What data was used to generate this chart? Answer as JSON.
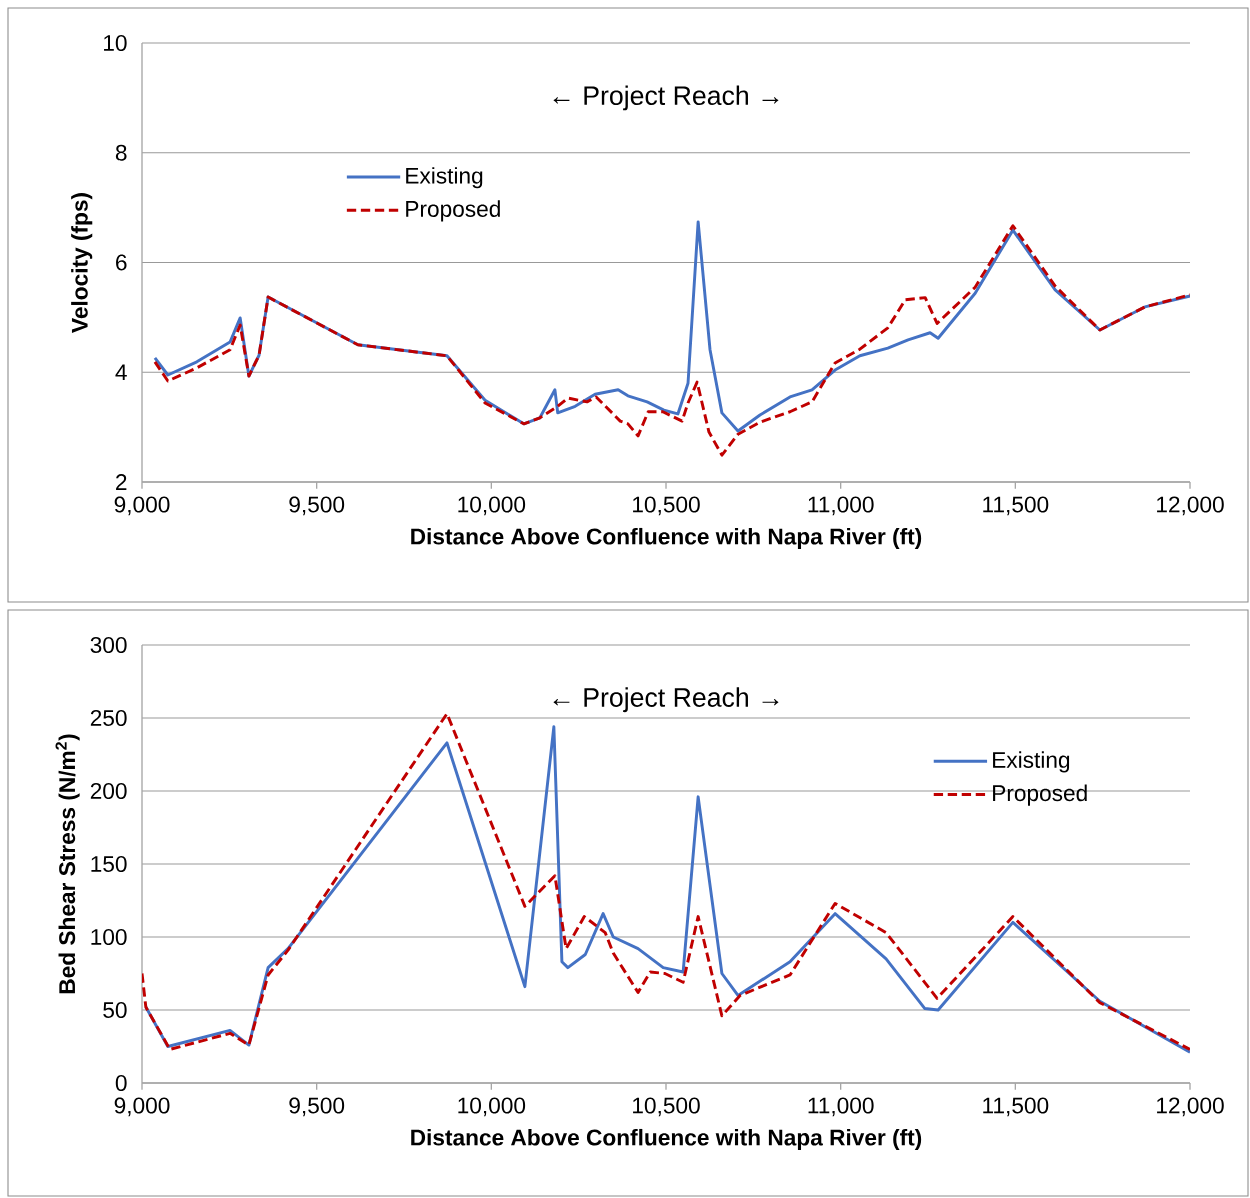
{
  "chart_data": [
    {
      "type": "line",
      "xlabel": "Distance Above Confluence with Napa River (ft)",
      "ylabel": "Velocity (fps)",
      "annotations": [
        "← Project Reach →"
      ],
      "xlim": [
        9000,
        12000
      ],
      "xticks": [
        {
          "value": 9000,
          "label": "9,000"
        },
        {
          "value": 9500,
          "label": "9,500"
        },
        {
          "value": 10000,
          "label": "10,000"
        },
        {
          "value": 10500,
          "label": "10,500"
        },
        {
          "value": 11000,
          "label": "11,000"
        },
        {
          "value": 11500,
          "label": "11,500"
        },
        {
          "value": 12000,
          "label": "12,000"
        }
      ],
      "ylim": [
        2,
        10
      ],
      "yticks": [
        2,
        4,
        6,
        8,
        10
      ],
      "grid": "y",
      "legend": "top left",
      "series": [
        {
          "name": "Existing",
          "color": "#4472c4",
          "line_style": "solid",
          "x": [
            9037,
            9074,
            9157,
            9252,
            9281,
            9306,
            9335,
            9361,
            9618,
            9873,
            9982,
            10093,
            10139,
            10182,
            10190,
            10240,
            10297,
            10363,
            10391,
            10446,
            10494,
            10534,
            10563,
            10592,
            10626,
            10660,
            10706,
            10769,
            10855,
            10918,
            10984,
            11055,
            11135,
            11193,
            11256,
            11279,
            11385,
            11493,
            11614,
            11742,
            11871,
            12000
          ],
          "values": [
            4.26,
            3.95,
            4.19,
            4.55,
            4.99,
            3.93,
            4.31,
            5.37,
            4.5,
            4.3,
            3.49,
            3.06,
            3.17,
            3.68,
            3.26,
            3.38,
            3.6,
            3.68,
            3.57,
            3.46,
            3.31,
            3.24,
            3.8,
            6.74,
            4.41,
            3.26,
            2.93,
            3.22,
            3.55,
            3.68,
            4.04,
            4.3,
            4.44,
            4.59,
            4.72,
            4.62,
            5.44,
            6.59,
            5.5,
            4.77,
            5.19,
            5.39
          ]
        },
        {
          "name": "Proposed",
          "color": "#c00000",
          "line_style": "dashed",
          "x": [
            9037,
            9074,
            9157,
            9252,
            9281,
            9306,
            9335,
            9361,
            9618,
            9873,
            9982,
            10093,
            10139,
            10188,
            10219,
            10274,
            10300,
            10369,
            10391,
            10420,
            10449,
            10491,
            10546,
            10563,
            10589,
            10623,
            10660,
            10706,
            10769,
            10855,
            10918,
            10984,
            11055,
            11135,
            11185,
            11242,
            11276,
            11385,
            11493,
            11614,
            11742,
            11871,
            12000
          ],
          "values": [
            4.19,
            3.84,
            4.08,
            4.41,
            4.86,
            3.93,
            4.31,
            5.37,
            4.5,
            4.3,
            3.44,
            3.06,
            3.17,
            3.37,
            3.53,
            3.46,
            3.55,
            3.11,
            3.06,
            2.84,
            3.28,
            3.28,
            3.11,
            3.44,
            3.82,
            2.91,
            2.49,
            2.87,
            3.09,
            3.28,
            3.46,
            4.17,
            4.42,
            4.81,
            5.32,
            5.36,
            4.89,
            5.55,
            6.67,
            5.57,
            4.77,
            5.19,
            5.41
          ]
        }
      ]
    },
    {
      "type": "line",
      "xlabel": "Distance Above Confluence with Napa River (ft)",
      "ylabel": "Bed Shear Stress (N/m$^{2}$)",
      "annotations": [
        "← Project Reach →"
      ],
      "xlim": [
        9000,
        12000
      ],
      "xticks": [
        {
          "value": 9000,
          "label": "9,000"
        },
        {
          "value": 9500,
          "label": "9,500"
        },
        {
          "value": 10000,
          "label": "10,000"
        },
        {
          "value": 10500,
          "label": "10,500"
        },
        {
          "value": 11000,
          "label": "11,000"
        },
        {
          "value": 11500,
          "label": "11,500"
        },
        {
          "value": 12000,
          "label": "12,000"
        }
      ],
      "ylim": [
        0,
        300
      ],
      "yticks": [
        0,
        50,
        100,
        150,
        200,
        250,
        300
      ],
      "grid": "y",
      "legend": "right",
      "series": [
        {
          "name": "Existing",
          "color": "#4472c4",
          "line_style": "solid",
          "x": [
            9011,
            9074,
            9252,
            9306,
            9361,
            9418,
            9873,
            10096,
            10179,
            10202,
            10219,
            10269,
            10320,
            10349,
            10420,
            10492,
            10549,
            10592,
            10660,
            10706,
            10855,
            10984,
            11130,
            11241,
            11279,
            11493,
            11742,
            12000
          ],
          "values": [
            52,
            25,
            36,
            26,
            79,
            92,
            233,
            66,
            244,
            83,
            79,
            88,
            116,
            100,
            92,
            79,
            76,
            196,
            75,
            60,
            83,
            116,
            85,
            51,
            50,
            110,
            56,
            21
          ]
        },
        {
          "name": "Proposed",
          "color": "#c00000",
          "line_style": "dashed",
          "x": [
            9000,
            9011,
            9080,
            9252,
            9306,
            9361,
            9418,
            9873,
            10096,
            10182,
            10214,
            10266,
            10326,
            10349,
            10420,
            10455,
            10497,
            10549,
            10592,
            10660,
            10712,
            10855,
            10984,
            11130,
            11276,
            11493,
            11742,
            12000
          ],
          "values": [
            75,
            52,
            23,
            34,
            26,
            74,
            91,
            253,
            121,
            142,
            92,
            114,
            103,
            89,
            62,
            76,
            75,
            69,
            114,
            46,
            60,
            74,
            123,
            103,
            58,
            114,
            55,
            23
          ]
        }
      ]
    }
  ]
}
